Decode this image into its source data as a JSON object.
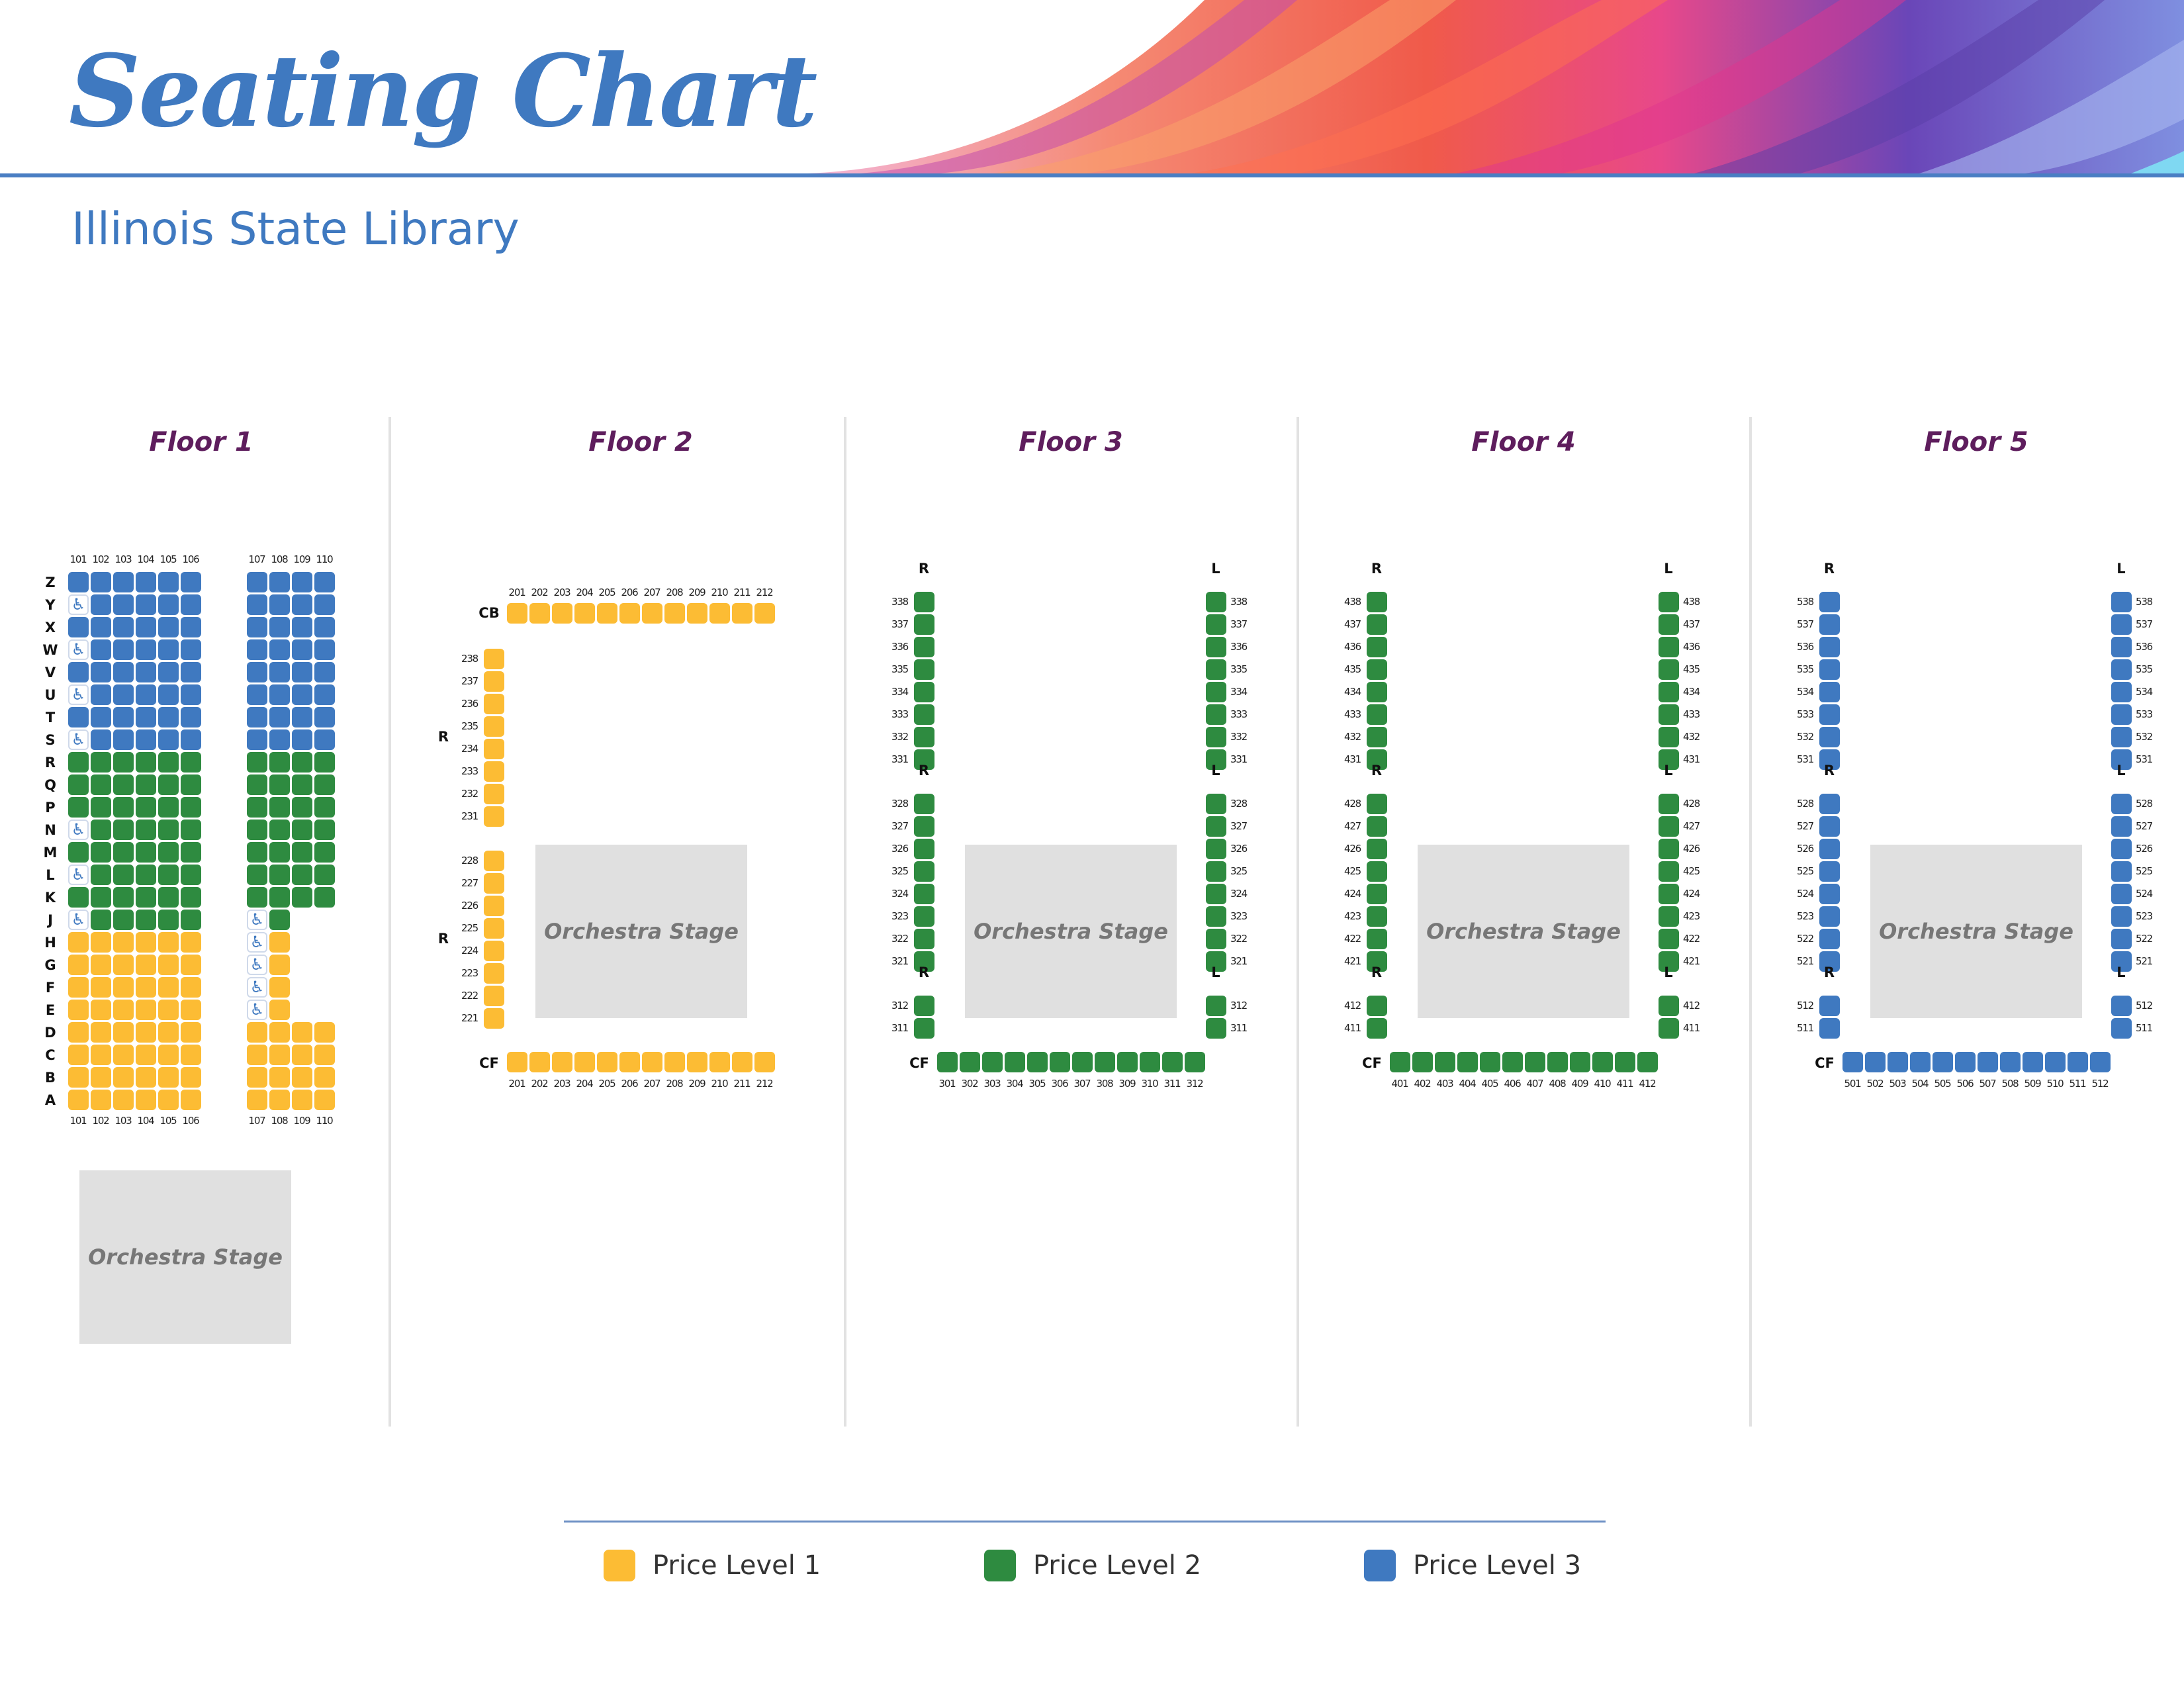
{
  "title": "Seating Chart",
  "subtitle": "Illinois State Library",
  "colors": {
    "price_level_1": "#fcbc34",
    "price_level_2": "#2e8b40",
    "price_level_3": "#3f79c0",
    "accent": "#3f79c0",
    "floor_title": "#5e1d5d",
    "stage": "#e0e0e0"
  },
  "icons": {
    "accessible_seat": "wheelchair-icon"
  },
  "stage_label": "Orchestra Stage",
  "legend": [
    {
      "label": "Price Level 1",
      "color": "#fcbc34"
    },
    {
      "label": "Price Level 2",
      "color": "#2e8b40"
    },
    {
      "label": "Price Level 3",
      "color": "#3f79c0"
    }
  ],
  "floors": [
    {
      "name": "Floor 1",
      "rows": [
        "Z",
        "Y",
        "X",
        "W",
        "V",
        "U",
        "T",
        "S",
        "R",
        "Q",
        "P",
        "N",
        "M",
        "L",
        "K",
        "J",
        "H",
        "G",
        "F",
        "E",
        "D",
        "C",
        "B",
        "A"
      ],
      "left_section_seats": [
        "101",
        "102",
        "103",
        "104",
        "105",
        "106"
      ],
      "right_section_seats": [
        "107",
        "108",
        "109",
        "110"
      ],
      "price_level_by_row": {
        "Z": 3,
        "Y": 3,
        "X": 3,
        "W": 3,
        "V": 3,
        "U": 3,
        "T": 3,
        "S": 3,
        "R": 2,
        "Q": 2,
        "P": 2,
        "N": 2,
        "M": 2,
        "L": 2,
        "K": 2,
        "J": 2,
        "H": 1,
        "G": 1,
        "F": 1,
        "E": 1,
        "D": 1,
        "C": 1,
        "B": 1,
        "A": 1
      },
      "accessible_seats": [
        "Y-101",
        "W-101",
        "U-101",
        "S-101",
        "N-101",
        "L-101",
        "J-101",
        "J-107",
        "H-107",
        "G-107",
        "F-107",
        "E-107"
      ],
      "missing_seats": [
        "J-109",
        "J-110",
        "H-109",
        "H-110",
        "G-109",
        "G-110",
        "F-109",
        "F-110",
        "E-109",
        "E-110"
      ]
    },
    {
      "name": "Floor 2",
      "price_level": 1,
      "sections": [
        {
          "label": "CB",
          "seats": [
            "201",
            "202",
            "203",
            "204",
            "205",
            "206",
            "207",
            "208",
            "209",
            "210",
            "211",
            "212"
          ]
        },
        {
          "label": "R",
          "seats": [
            "238",
            "237",
            "236",
            "235",
            "234",
            "233",
            "232",
            "231"
          ]
        },
        {
          "label": "R",
          "seats": [
            "228",
            "227",
            "226",
            "225",
            "224",
            "223",
            "222",
            "221"
          ]
        },
        {
          "label": "CF",
          "seats": [
            "201",
            "202",
            "203",
            "204",
            "205",
            "206",
            "207",
            "208",
            "209",
            "210",
            "211",
            "212"
          ]
        }
      ]
    },
    {
      "name": "Floor 3",
      "price_level": 2,
      "sections": [
        {
          "label": "R",
          "seats": [
            "338",
            "337",
            "336",
            "335",
            "334",
            "333",
            "332",
            "331"
          ]
        },
        {
          "label": "R",
          "seats": [
            "328",
            "327",
            "326",
            "325",
            "324",
            "323",
            "322",
            "321"
          ]
        },
        {
          "label": "R",
          "seats": [
            "312",
            "311"
          ]
        },
        {
          "label": "L",
          "seats": [
            "338",
            "337",
            "336",
            "335",
            "334",
            "333",
            "332",
            "331"
          ]
        },
        {
          "label": "L",
          "seats": [
            "328",
            "327",
            "326",
            "325",
            "324",
            "323",
            "322",
            "321"
          ]
        },
        {
          "label": "L",
          "seats": [
            "312",
            "311"
          ]
        },
        {
          "label": "CF",
          "seats": [
            "301",
            "302",
            "303",
            "304",
            "305",
            "306",
            "307",
            "308",
            "309",
            "310",
            "311",
            "312"
          ]
        }
      ]
    },
    {
      "name": "Floor 4",
      "price_level": 2,
      "sections": [
        {
          "label": "R",
          "seats": [
            "438",
            "437",
            "436",
            "435",
            "434",
            "433",
            "432",
            "431"
          ]
        },
        {
          "label": "R",
          "seats": [
            "428",
            "427",
            "426",
            "425",
            "424",
            "423",
            "422",
            "421"
          ]
        },
        {
          "label": "R",
          "seats": [
            "412",
            "411"
          ]
        },
        {
          "label": "L",
          "seats": [
            "438",
            "437",
            "436",
            "435",
            "434",
            "433",
            "432",
            "431"
          ]
        },
        {
          "label": "L",
          "seats": [
            "428",
            "427",
            "426",
            "425",
            "424",
            "423",
            "422",
            "421"
          ]
        },
        {
          "label": "L",
          "seats": [
            "412",
            "411"
          ]
        },
        {
          "label": "CF",
          "seats": [
            "401",
            "402",
            "403",
            "404",
            "405",
            "406",
            "407",
            "408",
            "409",
            "410",
            "411",
            "412"
          ]
        }
      ]
    },
    {
      "name": "Floor 5",
      "price_level": 3,
      "sections": [
        {
          "label": "R",
          "seats": [
            "538",
            "537",
            "536",
            "535",
            "534",
            "533",
            "532",
            "531"
          ]
        },
        {
          "label": "R",
          "seats": [
            "528",
            "527",
            "526",
            "525",
            "524",
            "523",
            "522",
            "521"
          ]
        },
        {
          "label": "R",
          "seats": [
            "512",
            "511"
          ]
        },
        {
          "label": "L",
          "seats": [
            "538",
            "537",
            "536",
            "535",
            "534",
            "533",
            "532",
            "531"
          ]
        },
        {
          "label": "L",
          "seats": [
            "528",
            "527",
            "526",
            "525",
            "524",
            "523",
            "522",
            "521"
          ]
        },
        {
          "label": "L",
          "seats": [
            "512",
            "511"
          ]
        },
        {
          "label": "CF",
          "seats": [
            "501",
            "502",
            "503",
            "504",
            "505",
            "506",
            "507",
            "508",
            "509",
            "510",
            "511",
            "512"
          ]
        }
      ]
    }
  ]
}
